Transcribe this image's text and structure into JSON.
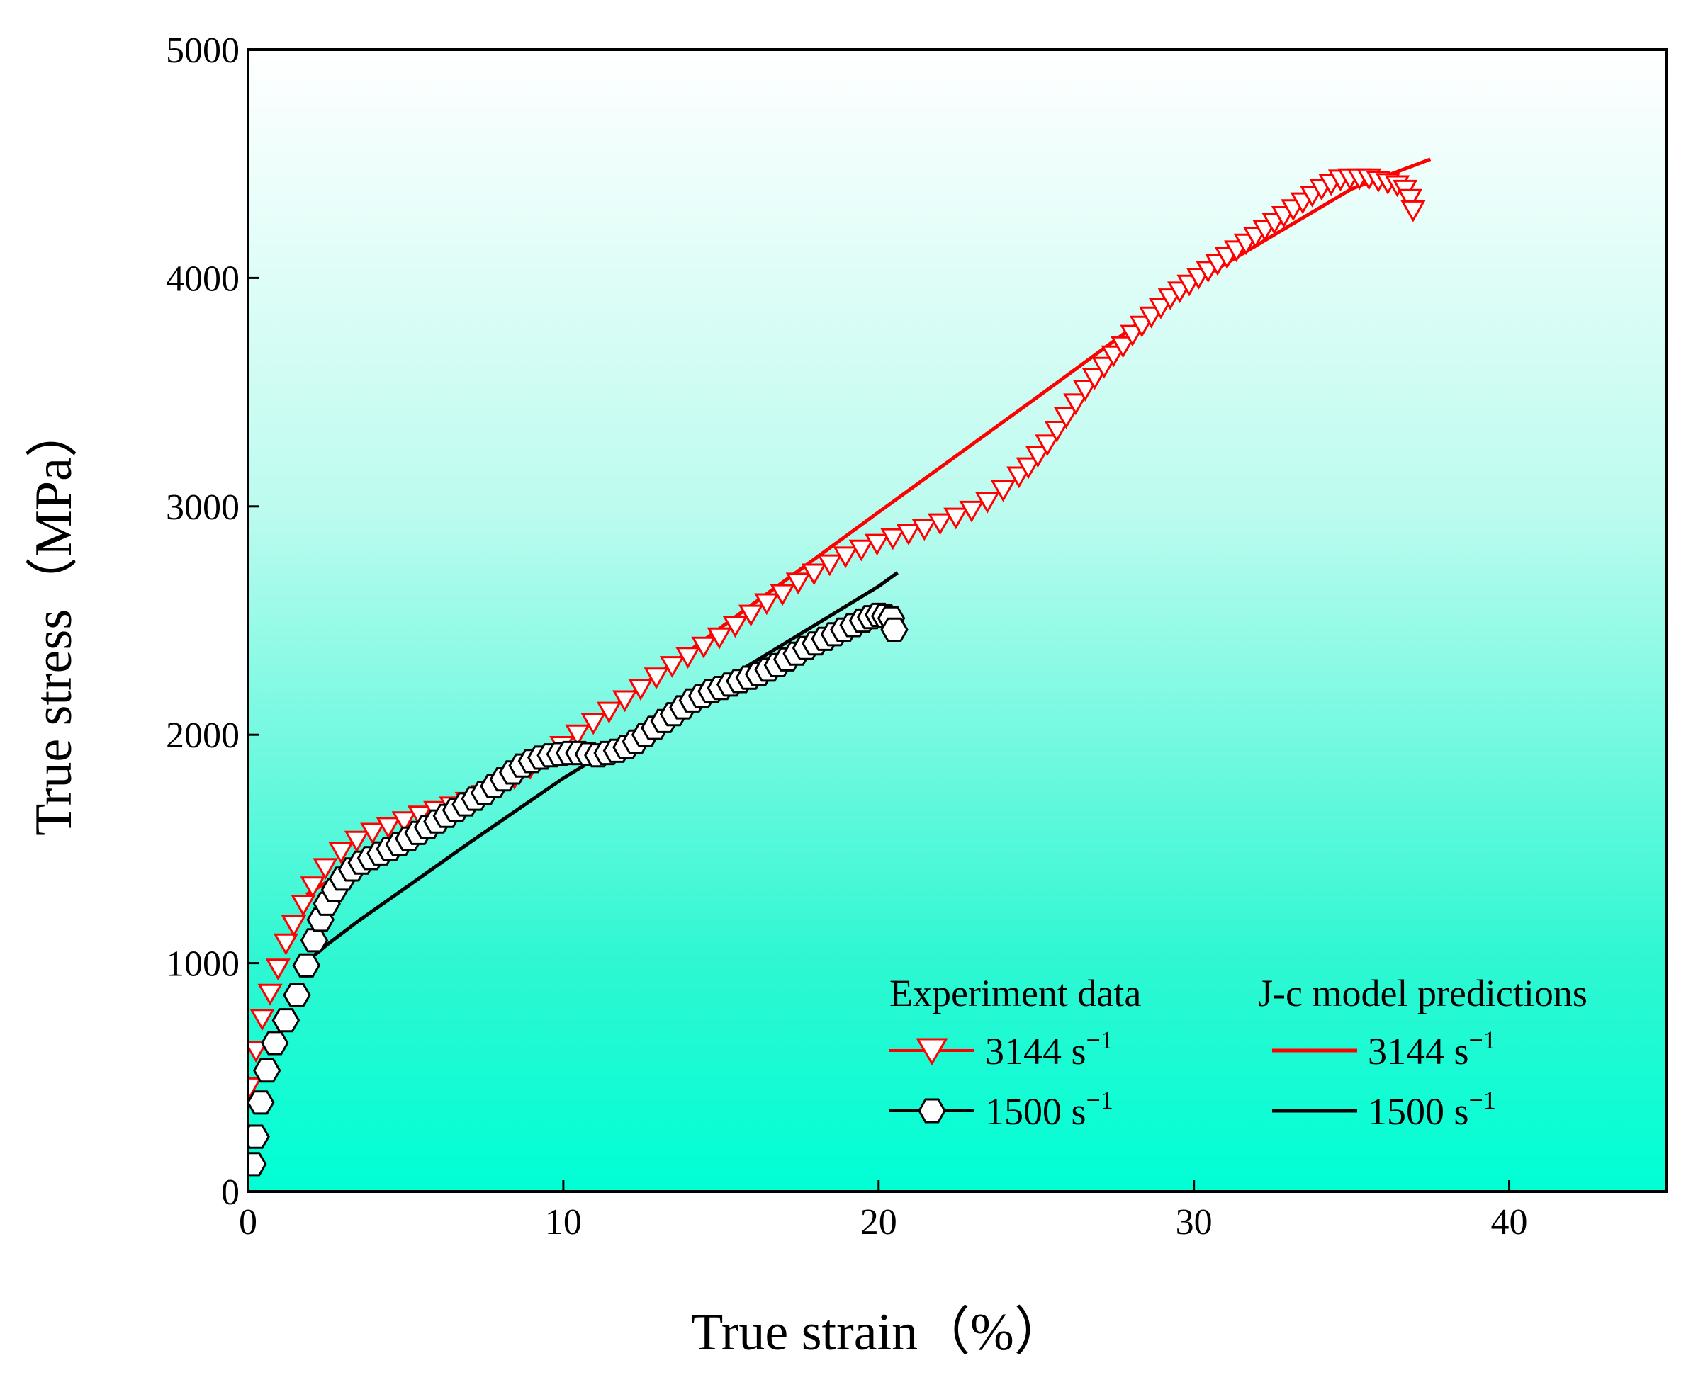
{
  "chart_data": {
    "type": "scatter",
    "title": "",
    "xlabel": "True strain（%）",
    "ylabel": "True stress（MPa）",
    "xlim": [
      0,
      45
    ],
    "ylim": [
      0,
      5000
    ],
    "xticks": [
      "0",
      "10",
      "20",
      "30",
      "40"
    ],
    "yticks": [
      "0",
      "1000",
      "2000",
      "3000",
      "4000",
      "5000"
    ],
    "background_gradient": {
      "top": "#ffffff",
      "bottom": "#00ffd5"
    },
    "legend": {
      "group_experiment": "Experiment data",
      "group_model": "J-c model predictions",
      "entries": [
        {
          "rate": "3144 s",
          "superscript": "−1"
        },
        {
          "rate": "1500 s",
          "superscript": "−1"
        }
      ]
    },
    "series": [
      {
        "name": "Experiment data 3144 s−1",
        "kind": "markers",
        "marker": "triangle-down",
        "color": "#ff0000",
        "x": [
          0.05,
          0.25,
          0.45,
          0.7,
          0.95,
          1.2,
          1.45,
          1.75,
          2.05,
          2.45,
          2.95,
          3.45,
          3.95,
          4.45,
          4.95,
          5.45,
          5.95,
          6.45,
          6.95,
          7.45,
          7.95,
          8.45,
          8.95,
          9.45,
          9.95,
          10.45,
          10.95,
          11.45,
          11.95,
          12.45,
          12.95,
          13.45,
          13.95,
          14.45,
          14.95,
          15.45,
          15.95,
          16.45,
          16.95,
          17.45,
          17.95,
          18.45,
          18.95,
          19.45,
          19.95,
          20.45,
          20.95,
          21.45,
          21.95,
          22.45,
          22.95,
          23.45,
          23.95,
          24.45,
          24.75,
          25.05,
          25.35,
          25.65,
          25.95,
          26.25,
          26.55,
          26.85,
          27.15,
          27.45,
          27.75,
          28.05,
          28.35,
          28.65,
          28.95,
          29.25,
          29.55,
          29.85,
          30.15,
          30.45,
          30.75,
          31.05,
          31.35,
          31.65,
          31.95,
          32.25,
          32.55,
          32.85,
          33.15,
          33.45,
          33.75,
          34.05,
          34.35,
          34.65,
          34.95,
          35.25,
          35.55,
          35.85,
          36.15,
          36.45,
          36.7,
          36.85,
          36.95
        ],
        "y": [
          460,
          620,
          760,
          870,
          980,
          1090,
          1170,
          1260,
          1340,
          1420,
          1490,
          1540,
          1575,
          1600,
          1625,
          1650,
          1670,
          1690,
          1710,
          1740,
          1775,
          1815,
          1860,
          1905,
          1955,
          2005,
          2055,
          2105,
          2155,
          2205,
          2255,
          2305,
          2345,
          2390,
          2430,
          2480,
          2530,
          2580,
          2620,
          2670,
          2710,
          2750,
          2785,
          2815,
          2840,
          2865,
          2885,
          2905,
          2930,
          2955,
          2985,
          3025,
          3075,
          3135,
          3175,
          3225,
          3275,
          3335,
          3395,
          3455,
          3515,
          3565,
          3615,
          3665,
          3705,
          3755,
          3795,
          3835,
          3875,
          3915,
          3945,
          3975,
          4005,
          4035,
          4065,
          4095,
          4125,
          4155,
          4185,
          4215,
          4245,
          4275,
          4305,
          4335,
          4365,
          4395,
          4415,
          4435,
          4440,
          4440,
          4440,
          4430,
          4420,
          4410,
          4390,
          4350,
          4300
        ]
      },
      {
        "name": "Experiment data 1500 s−1",
        "kind": "markers",
        "marker": "hexagon",
        "color": "#000000",
        "x": [
          0.15,
          0.25,
          0.4,
          0.6,
          0.85,
          1.2,
          1.55,
          1.85,
          2.1,
          2.3,
          2.5,
          2.75,
          3.0,
          3.3,
          3.6,
          3.9,
          4.2,
          4.5,
          4.8,
          5.1,
          5.4,
          5.7,
          6.0,
          6.3,
          6.6,
          6.9,
          7.2,
          7.5,
          7.8,
          8.1,
          8.4,
          8.7,
          9.0,
          9.3,
          9.6,
          9.9,
          10.2,
          10.5,
          10.8,
          11.1,
          11.4,
          11.7,
          12.0,
          12.3,
          12.6,
          12.9,
          13.2,
          13.5,
          13.8,
          14.1,
          14.4,
          14.7,
          15.0,
          15.3,
          15.6,
          15.9,
          16.2,
          16.5,
          16.8,
          17.1,
          17.4,
          17.7,
          18.0,
          18.3,
          18.6,
          18.9,
          19.2,
          19.5,
          19.75,
          20.0,
          20.2,
          20.4,
          20.5
        ],
        "y": [
          120,
          240,
          390,
          530,
          650,
          750,
          860,
          990,
          1100,
          1190,
          1260,
          1320,
          1370,
          1410,
          1440,
          1460,
          1480,
          1500,
          1520,
          1545,
          1570,
          1595,
          1620,
          1645,
          1670,
          1695,
          1720,
          1745,
          1775,
          1805,
          1835,
          1865,
          1885,
          1900,
          1910,
          1915,
          1920,
          1920,
          1915,
          1910,
          1920,
          1930,
          1945,
          1970,
          2000,
          2030,
          2060,
          2090,
          2120,
          2150,
          2170,
          2190,
          2205,
          2220,
          2235,
          2250,
          2265,
          2285,
          2305,
          2330,
          2355,
          2380,
          2400,
          2420,
          2440,
          2460,
          2480,
          2500,
          2515,
          2525,
          2520,
          2510,
          2460
        ]
      },
      {
        "name": "J-c model predictions 3144 s−1",
        "kind": "line",
        "color": "#ff0000",
        "x": [
          1.85,
          2.5,
          3.5,
          5,
          7,
          10,
          15,
          20,
          25,
          30,
          35,
          37.5
        ],
        "y": [
          1300,
          1355,
          1435,
          1550,
          1700,
          1960,
          2470,
          2975,
          3475,
          3980,
          4390,
          4520
        ]
      },
      {
        "name": "J-c model predictions 1500 s−1",
        "kind": "line",
        "color": "#000000",
        "x": [
          1.8,
          2.5,
          3.5,
          5,
          7,
          10,
          12.5,
          15,
          17.5,
          20,
          20.6
        ],
        "y": [
          1000,
          1080,
          1185,
          1330,
          1525,
          1810,
          2020,
          2230,
          2440,
          2650,
          2710
        ]
      }
    ]
  }
}
